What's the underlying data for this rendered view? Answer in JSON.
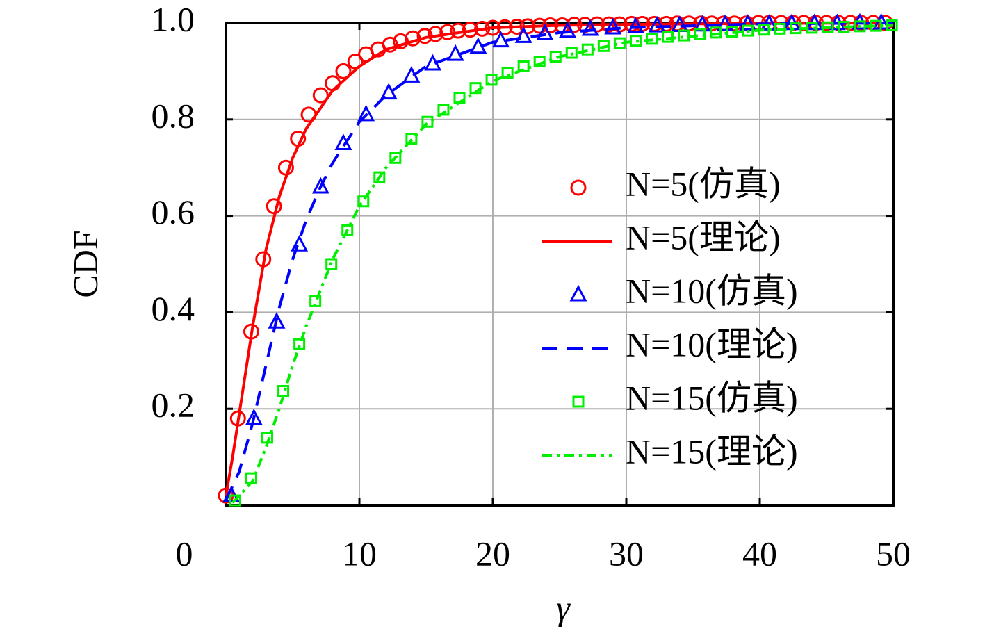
{
  "chart_data": {
    "type": "line",
    "x_label": "γ",
    "y_label": "CDF",
    "xlim": [
      0,
      50
    ],
    "ylim": [
      0,
      1
    ],
    "xticks": [
      0,
      10,
      20,
      30,
      40,
      50
    ],
    "yticks": [
      0.2,
      0.4,
      0.6,
      0.8,
      {
        "value": 1,
        "label": "1.0"
      }
    ],
    "grid": true,
    "legend": "right",
    "series": [
      {
        "name": "N=5(仿真)",
        "color": "#ff0000",
        "marker": "circle",
        "line": "none",
        "x": [
          0,
          0.9,
          1.9,
          2.8,
          3.6,
          4.5,
          5.4,
          6.2,
          7.1,
          8.0,
          8.8,
          9.7,
          10.5,
          11.4,
          12.3,
          13.1,
          14.0,
          14.9,
          15.7,
          16.6,
          17.4,
          18.3,
          19.2,
          20.0,
          20.9,
          21.8,
          22.6,
          23.5,
          24.3,
          25.2,
          26.1,
          26.9,
          27.8,
          28.7,
          29.5,
          30.4,
          31.2,
          32.1,
          33.0,
          33.8,
          34.7,
          35.6,
          36.4,
          37.3,
          38.1,
          39.0,
          39.9,
          40.7,
          41.6,
          42.5,
          43.3,
          44.2,
          45.0,
          45.9,
          46.8,
          47.6,
          48.5,
          49.4
        ],
        "values": [
          0.02,
          0.18,
          0.36,
          0.51,
          0.62,
          0.7,
          0.76,
          0.81,
          0.85,
          0.875,
          0.9,
          0.92,
          0.935,
          0.945,
          0.955,
          0.962,
          0.968,
          0.973,
          0.977,
          0.981,
          0.984,
          0.986,
          0.988,
          0.99,
          0.991,
          0.992,
          0.993,
          0.994,
          0.995,
          0.995,
          0.996,
          0.996,
          0.997,
          0.997,
          0.997,
          0.998,
          0.998,
          0.998,
          0.998,
          0.999,
          0.999,
          0.999,
          0.999,
          0.999,
          0.999,
          0.999,
          1,
          1,
          1,
          1,
          1,
          1,
          1,
          1,
          1,
          1,
          1,
          1
        ]
      },
      {
        "name": "N=5(理论)",
        "color": "#ff0000",
        "marker": "none",
        "line": "solid",
        "x": [
          0,
          0.5,
          1,
          1.5,
          2,
          3,
          4,
          5,
          6,
          8,
          10,
          12,
          15,
          20,
          25,
          30,
          40,
          50
        ],
        "values": [
          0.02,
          0.1,
          0.19,
          0.28,
          0.37,
          0.53,
          0.64,
          0.72,
          0.78,
          0.86,
          0.91,
          0.945,
          0.97,
          0.99,
          0.995,
          0.997,
          0.999,
          1
        ]
      },
      {
        "name": "N=10(仿真)",
        "color": "#0000ff",
        "marker": "triangle",
        "line": "none",
        "x": [
          0.4,
          2.1,
          3.8,
          5.5,
          7.1,
          8.8,
          10.5,
          12.2,
          13.9,
          15.5,
          17.2,
          18.9,
          20.6,
          22.3,
          23.9,
          25.6,
          27.3,
          29.0,
          30.7,
          32.3,
          34.0,
          35.7,
          37.4,
          39.1,
          40.7,
          42.4,
          44.1,
          45.8,
          47.5,
          49.1
        ],
        "values": [
          0.02,
          0.18,
          0.38,
          0.54,
          0.66,
          0.75,
          0.81,
          0.855,
          0.89,
          0.915,
          0.935,
          0.95,
          0.963,
          0.972,
          0.978,
          0.983,
          0.987,
          0.99,
          0.992,
          0.994,
          0.995,
          0.996,
          0.997,
          0.998,
          0.998,
          0.999,
          0.999,
          0.999,
          1,
          1
        ]
      },
      {
        "name": "N=10(理论)",
        "color": "#0000ff",
        "marker": "none",
        "line": "dashed",
        "x": [
          0,
          1,
          2,
          3,
          4,
          5,
          6,
          7,
          8,
          10,
          12,
          15,
          20,
          25,
          30,
          40,
          50
        ],
        "values": [
          0.01,
          0.07,
          0.17,
          0.29,
          0.41,
          0.51,
          0.59,
          0.655,
          0.71,
          0.795,
          0.85,
          0.91,
          0.96,
          0.98,
          0.99,
          0.998,
          1
        ]
      },
      {
        "name": "N=15(仿真)",
        "color": "#00ee00",
        "marker": "square",
        "line": "none",
        "x": [
          0.7,
          1.9,
          3.1,
          4.3,
          5.5,
          6.7,
          7.9,
          9.1,
          10.3,
          11.5,
          12.7,
          13.9,
          15.1,
          16.3,
          17.5,
          18.7,
          19.9,
          21.1,
          22.3,
          23.5,
          24.7,
          25.9,
          27.1,
          28.3,
          29.5,
          30.7,
          31.9,
          33.1,
          34.3,
          35.5,
          36.7,
          37.9,
          39.1,
          40.3,
          41.5,
          42.7,
          43.9,
          45.1,
          46.3,
          47.5,
          48.7,
          49.9
        ],
        "values": [
          0.01,
          0.056,
          0.14,
          0.237,
          0.334,
          0.423,
          0.5,
          0.57,
          0.63,
          0.68,
          0.72,
          0.76,
          0.795,
          0.82,
          0.845,
          0.865,
          0.882,
          0.897,
          0.91,
          0.92,
          0.93,
          0.938,
          0.945,
          0.952,
          0.958,
          0.963,
          0.967,
          0.971,
          0.974,
          0.977,
          0.98,
          0.982,
          0.984,
          0.986,
          0.988,
          0.989,
          0.99,
          0.991,
          0.992,
          0.993,
          0.994,
          0.995
        ]
      },
      {
        "name": "N=15(理论)",
        "color": "#00ee00",
        "marker": "none",
        "line": "dashdot",
        "x": [
          0.5,
          1,
          2,
          3,
          4,
          5,
          6,
          7,
          8,
          10,
          12,
          15,
          20,
          25,
          30,
          40,
          50
        ],
        "values": [
          0.005,
          0.02,
          0.05,
          0.12,
          0.2,
          0.29,
          0.37,
          0.44,
          0.51,
          0.62,
          0.7,
          0.79,
          0.88,
          0.93,
          0.96,
          0.985,
          0.995
        ]
      }
    ]
  }
}
